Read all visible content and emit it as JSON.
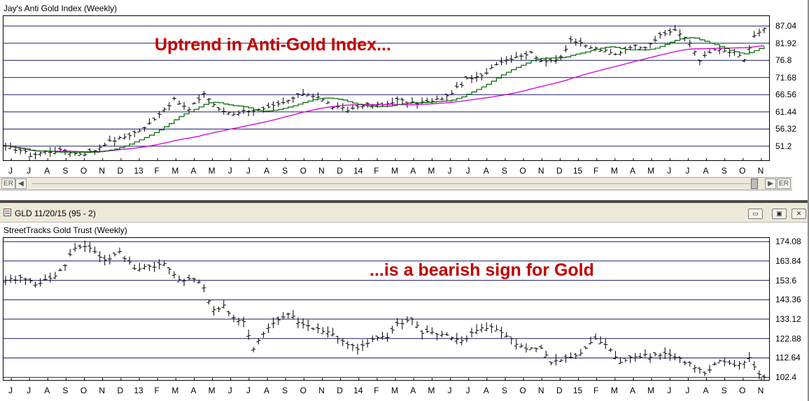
{
  "colors": {
    "grid": "#1a1a6e",
    "bars": "#000000",
    "ma_short": "#006400",
    "ma_long": "#d000d0",
    "annotation": "#c00000",
    "frame": "#ece9d8"
  },
  "top_panel": {
    "title": "Jay's Anti Gold Index (Weekly)",
    "annotation": "Uptrend in Anti-Gold Index...",
    "y_labels": [
      "87.04",
      "81.92",
      "76.8",
      "71.68",
      "66.56",
      "61.44",
      "56.32",
      "51.2"
    ]
  },
  "scrollbar": {
    "left_label": "ER",
    "left_arrow": "◀",
    "right_arrow": "▶",
    "right_label": "ER"
  },
  "bottom_window": {
    "title": "GLD 11/20/15 (95 - 2)",
    "minimize": "▭",
    "restore": "▣",
    "close": "✕"
  },
  "bottom_panel": {
    "title": "StreetTracks Gold Trust (Weekly)",
    "annotation": "...is a bearish sign for Gold",
    "y_labels": [
      "174.08",
      "163.84",
      "153.6",
      "143.36",
      "133.12",
      "122.88",
      "112.64",
      "102.4"
    ]
  },
  "x_axis": {
    "labels": [
      "J",
      "J",
      "A",
      "S",
      "O",
      "N",
      "D",
      "13",
      "F",
      "M",
      "A",
      "M",
      "J",
      "J",
      "A",
      "S",
      "O",
      "N",
      "D",
      "14",
      "F",
      "M",
      "A",
      "M",
      "J",
      "J",
      "A",
      "S",
      "O",
      "N",
      "D",
      "15",
      "F",
      "M",
      "A",
      "M",
      "J",
      "J",
      "A",
      "S",
      "O",
      "N"
    ]
  },
  "chart_data": [
    {
      "type": "line",
      "title": "Jay's Anti Gold Index (Weekly)",
      "ylim": [
        47,
        90
      ],
      "y_ticks": [
        87.04,
        81.92,
        76.8,
        71.68,
        66.56,
        61.44,
        56.32,
        51.2
      ],
      "x_start": "2012-06",
      "x_categories": [
        "J",
        "J",
        "A",
        "S",
        "O",
        "N",
        "D",
        "13",
        "F",
        "M",
        "A",
        "M",
        "J",
        "J",
        "A",
        "S",
        "O",
        "N",
        "D",
        "14",
        "F",
        "M",
        "A",
        "M",
        "J",
        "J",
        "A",
        "S",
        "O",
        "N",
        "D",
        "15",
        "F",
        "M",
        "A",
        "M",
        "J",
        "J",
        "A",
        "S",
        "O",
        "N"
      ],
      "anchors": [
        [
          0,
          51
        ],
        [
          3,
          50
        ],
        [
          5,
          48.5
        ],
        [
          8,
          49.5
        ],
        [
          12,
          50
        ],
        [
          14,
          49
        ],
        [
          16,
          49
        ],
        [
          18,
          50
        ],
        [
          20,
          52
        ],
        [
          24,
          54
        ],
        [
          28,
          56.5
        ],
        [
          31,
          61
        ],
        [
          34,
          65
        ],
        [
          37,
          62
        ],
        [
          40,
          67
        ],
        [
          43,
          62
        ],
        [
          46,
          61
        ],
        [
          49,
          62
        ],
        [
          52,
          62
        ],
        [
          56,
          64
        ],
        [
          60,
          67
        ],
        [
          63,
          66
        ],
        [
          66,
          63
        ],
        [
          69,
          62
        ],
        [
          72,
          63.5
        ],
        [
          76,
          63.5
        ],
        [
          79,
          65
        ],
        [
          82,
          64
        ],
        [
          86,
          64.5
        ],
        [
          89,
          66
        ],
        [
          93,
          71
        ],
        [
          96,
          72
        ],
        [
          99,
          76
        ],
        [
          103,
          78
        ],
        [
          106,
          79
        ],
        [
          109,
          76
        ],
        [
          112,
          78
        ],
        [
          114,
          83
        ],
        [
          117,
          81
        ],
        [
          120,
          80
        ],
        [
          123,
          78.5
        ],
        [
          126,
          81
        ],
        [
          129,
          81
        ],
        [
          132,
          84
        ],
        [
          135,
          86
        ],
        [
          138,
          82
        ],
        [
          140,
          77
        ],
        [
          143,
          80
        ],
        [
          147,
          79
        ],
        [
          149,
          77
        ],
        [
          151,
          84
        ],
        [
          153,
          86
        ]
      ],
      "series": [
        {
          "style": "ohlc",
          "color": "#000000"
        },
        {
          "style": "line",
          "color": "#006400"
        },
        {
          "style": "line",
          "color": "#d000d0"
        }
      ]
    },
    {
      "type": "line",
      "title": "StreetTracks Gold Trust (Weekly)",
      "ylim": [
        101,
        176
      ],
      "y_ticks": [
        174.08,
        163.84,
        153.6,
        143.36,
        133.12,
        122.88,
        112.64,
        102.4
      ],
      "x_start": "2012-06",
      "x_categories": [
        "J",
        "J",
        "A",
        "S",
        "O",
        "N",
        "D",
        "13",
        "F",
        "M",
        "A",
        "M",
        "J",
        "J",
        "A",
        "S",
        "O",
        "N",
        "D",
        "14",
        "F",
        "M",
        "A",
        "M",
        "J",
        "J",
        "A",
        "S",
        "O",
        "N",
        "D",
        "15",
        "F",
        "M",
        "A",
        "M",
        "J",
        "J",
        "A",
        "S",
        "O",
        "N"
      ],
      "anchors": [
        [
          0,
          153
        ],
        [
          3,
          155
        ],
        [
          6,
          152
        ],
        [
          9,
          154
        ],
        [
          12,
          162
        ],
        [
          14,
          171
        ],
        [
          17,
          171
        ],
        [
          20,
          164
        ],
        [
          23,
          168
        ],
        [
          26,
          160
        ],
        [
          29,
          161
        ],
        [
          32,
          162
        ],
        [
          35,
          154
        ],
        [
          38,
          155
        ],
        [
          40,
          149
        ],
        [
          42,
          138
        ],
        [
          44,
          140
        ],
        [
          46,
          133
        ],
        [
          48,
          131
        ],
        [
          50,
          118
        ],
        [
          52,
          126
        ],
        [
          54,
          131
        ],
        [
          57,
          136
        ],
        [
          60,
          130
        ],
        [
          63,
          128
        ],
        [
          66,
          125
        ],
        [
          69,
          120
        ],
        [
          71,
          117
        ],
        [
          74,
          122
        ],
        [
          77,
          124
        ],
        [
          79,
          130
        ],
        [
          82,
          133
        ],
        [
          84,
          126
        ],
        [
          87,
          126
        ],
        [
          90,
          124
        ],
        [
          92,
          121
        ],
        [
          95,
          128
        ],
        [
          98,
          129
        ],
        [
          101,
          124
        ],
        [
          103,
          120
        ],
        [
          105,
          117
        ],
        [
          108,
          118
        ],
        [
          110,
          111
        ],
        [
          113,
          112
        ],
        [
          116,
          115
        ],
        [
          119,
          123
        ],
        [
          121,
          119
        ],
        [
          124,
          111
        ],
        [
          127,
          114
        ],
        [
          130,
          114
        ],
        [
          133,
          115
        ],
        [
          136,
          112
        ],
        [
          139,
          108
        ],
        [
          141,
          104
        ],
        [
          144,
          111
        ],
        [
          147,
          108
        ],
        [
          150,
          112
        ],
        [
          152,
          104
        ],
        [
          153,
          103
        ]
      ],
      "series": [
        {
          "style": "ohlc",
          "color": "#000000"
        }
      ]
    }
  ]
}
